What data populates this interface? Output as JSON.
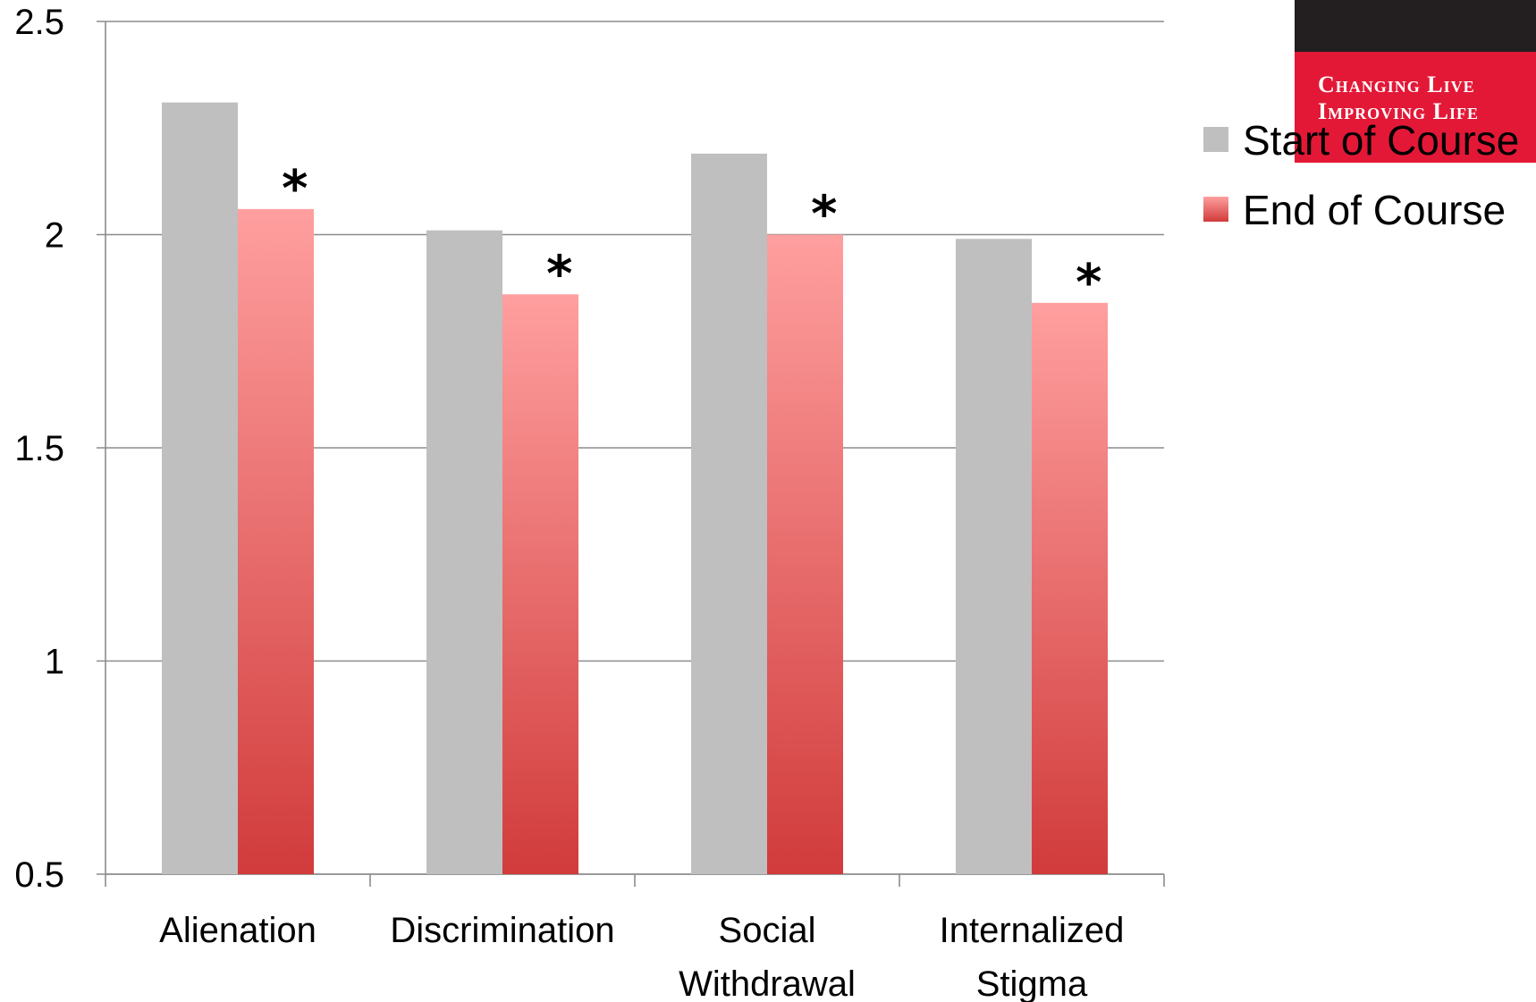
{
  "chart_data": {
    "type": "bar",
    "categories": [
      [
        "Alienation"
      ],
      [
        "Discrimination"
      ],
      [
        "Social",
        "Withdrawal"
      ],
      [
        "Internalized",
        "Stigma"
      ]
    ],
    "series": [
      {
        "name": "Start of Course",
        "values": [
          2.31,
          2.01,
          2.19,
          1.99
        ],
        "color": "#bfbfbf"
      },
      {
        "name": "End of Course",
        "values": [
          2.06,
          1.86,
          2.0,
          1.84
        ],
        "color_top": "#ff9f9f",
        "color_bottom": "#d13b3b"
      }
    ],
    "significance_markers": [
      "*",
      "*",
      "*",
      "*"
    ],
    "ylim": [
      0.5,
      2.5
    ],
    "yticks": [
      0.5,
      1,
      1.5,
      2,
      2.5
    ],
    "ytick_labels": [
      "0.5",
      "1",
      "1.5",
      "2",
      "2.5"
    ],
    "grid": true,
    "legend_position": "right",
    "title": "",
    "xlabel": "",
    "ylabel": ""
  },
  "logo": {
    "line1": "Changing Live",
    "line2": "Improving Life"
  }
}
